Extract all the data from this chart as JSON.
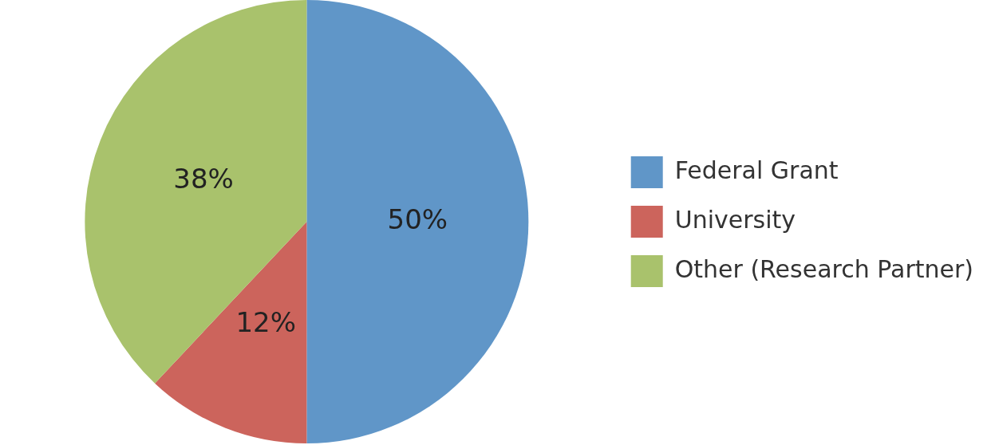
{
  "chart_data": {
    "type": "pie",
    "categories": [
      "Federal Grant",
      "University",
      "Other (Research Partner)"
    ],
    "values": [
      50,
      12,
      38
    ],
    "colors": [
      "#6096c8",
      "#cc645c",
      "#a9c26c"
    ],
    "value_labels": [
      "50%",
      "12%",
      "38%"
    ],
    "legend": "right"
  }
}
